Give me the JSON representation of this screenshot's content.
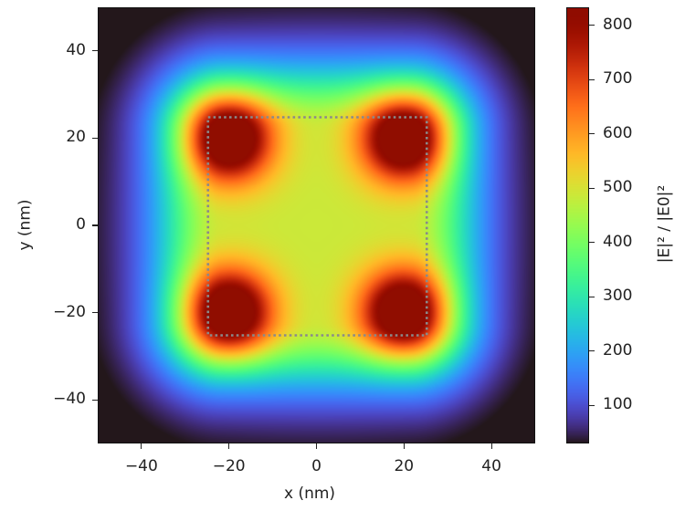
{
  "chart_data": {
    "type": "heatmap",
    "title": "",
    "xlabel": "x (nm)",
    "ylabel": "y (nm)",
    "colorbar_label": "|E|² / |E0|²",
    "colormap": "turbo",
    "xlim": [
      -50,
      50
    ],
    "ylim": [
      -50,
      50
    ],
    "clim": [
      30,
      833
    ],
    "x_ticks": [
      -40,
      -20,
      0,
      20,
      40
    ],
    "y_ticks": [
      -40,
      -20,
      0,
      20,
      40
    ],
    "colorbar_ticks": [
      100,
      200,
      300,
      400,
      500,
      600,
      700,
      800
    ],
    "x_tick_labels": [
      "−40",
      "−20",
      "0",
      "20",
      "40"
    ],
    "y_tick_labels": [
      "40",
      "20",
      "0",
      "−20",
      "−40"
    ],
    "colorbar_tick_labels": [
      "800",
      "700",
      "600",
      "500",
      "400",
      "300",
      "200",
      "100"
    ],
    "hotspots": [
      {
        "x": -20,
        "y": 20,
        "value": 830
      },
      {
        "x": 20,
        "y": 20,
        "value": 830
      },
      {
        "x": -20,
        "y": -20,
        "value": 830
      },
      {
        "x": 20,
        "y": -20,
        "value": 830
      }
    ],
    "center_value": 450,
    "edge_value": 30,
    "structure_outline": {
      "shape": "rectangle",
      "style": "dotted",
      "color": "#8a8a8a",
      "x": [
        -25,
        25
      ],
      "y": [
        -25,
        25
      ]
    },
    "grid": false,
    "legend": "colorbar-right"
  }
}
